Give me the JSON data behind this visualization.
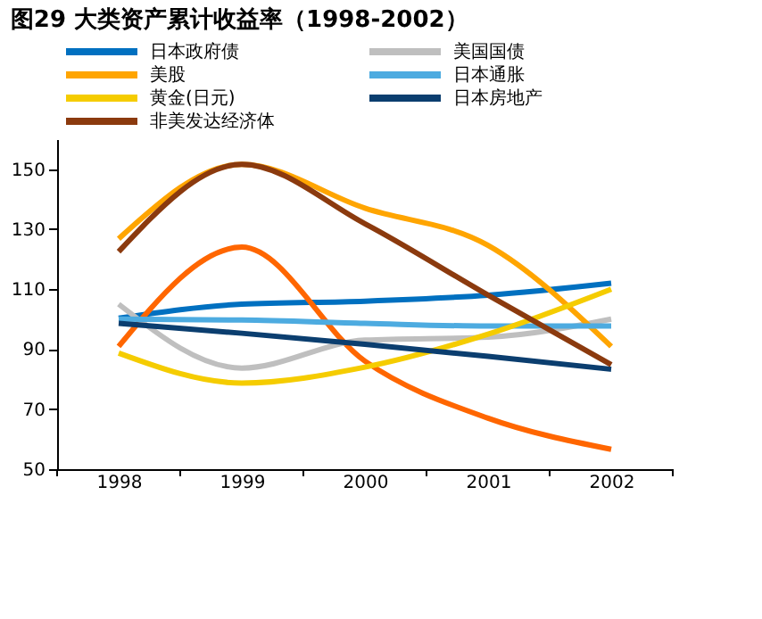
{
  "chart_data": {
    "type": "line",
    "title": "图29 大类资产累计收益率（1998-2002）",
    "categories": [
      "1998",
      "1999",
      "2000",
      "2001",
      "2002"
    ],
    "series": [
      {
        "name": "日本政府债",
        "color": "#0070c0",
        "values": [
          100.3,
          105,
          106,
          108,
          112
        ]
      },
      {
        "color": "#ff6600",
        "values": [
          90.9,
          124,
          86,
          67,
          56.6
        ]
      },
      {
        "name": "美国国债",
        "color": "#bfbfbf",
        "values": [
          105,
          83.7,
          93,
          94,
          100
        ]
      },
      {
        "name": "美股",
        "color": "#ffa500",
        "values": [
          126.8,
          151.6,
          137,
          124.6,
          90.9
        ]
      },
      {
        "name": "日本通胀",
        "color": "#4dabe0",
        "values": [
          100,
          99.7,
          98.6,
          97.7,
          97.7
        ]
      },
      {
        "name": "黄金(日元)",
        "color": "#f5cc00",
        "values": [
          88.7,
          78.7,
          84,
          95,
          110
        ]
      },
      {
        "name": "日本房地产",
        "color": "#0b3e6f",
        "values": [
          98.6,
          95.3,
          91.6,
          87.6,
          83.3
        ]
      },
      {
        "name": "非美发达经济体",
        "color": "#8b3a0e",
        "values": [
          122.5,
          151.6,
          131.8,
          108,
          84.8
        ]
      }
    ],
    "ylim": [
      50,
      160
    ],
    "yticks": [
      50,
      70,
      90,
      110,
      130,
      150
    ],
    "legend": "top",
    "grid": false,
    "marker": "none",
    "line_style": "solid"
  }
}
